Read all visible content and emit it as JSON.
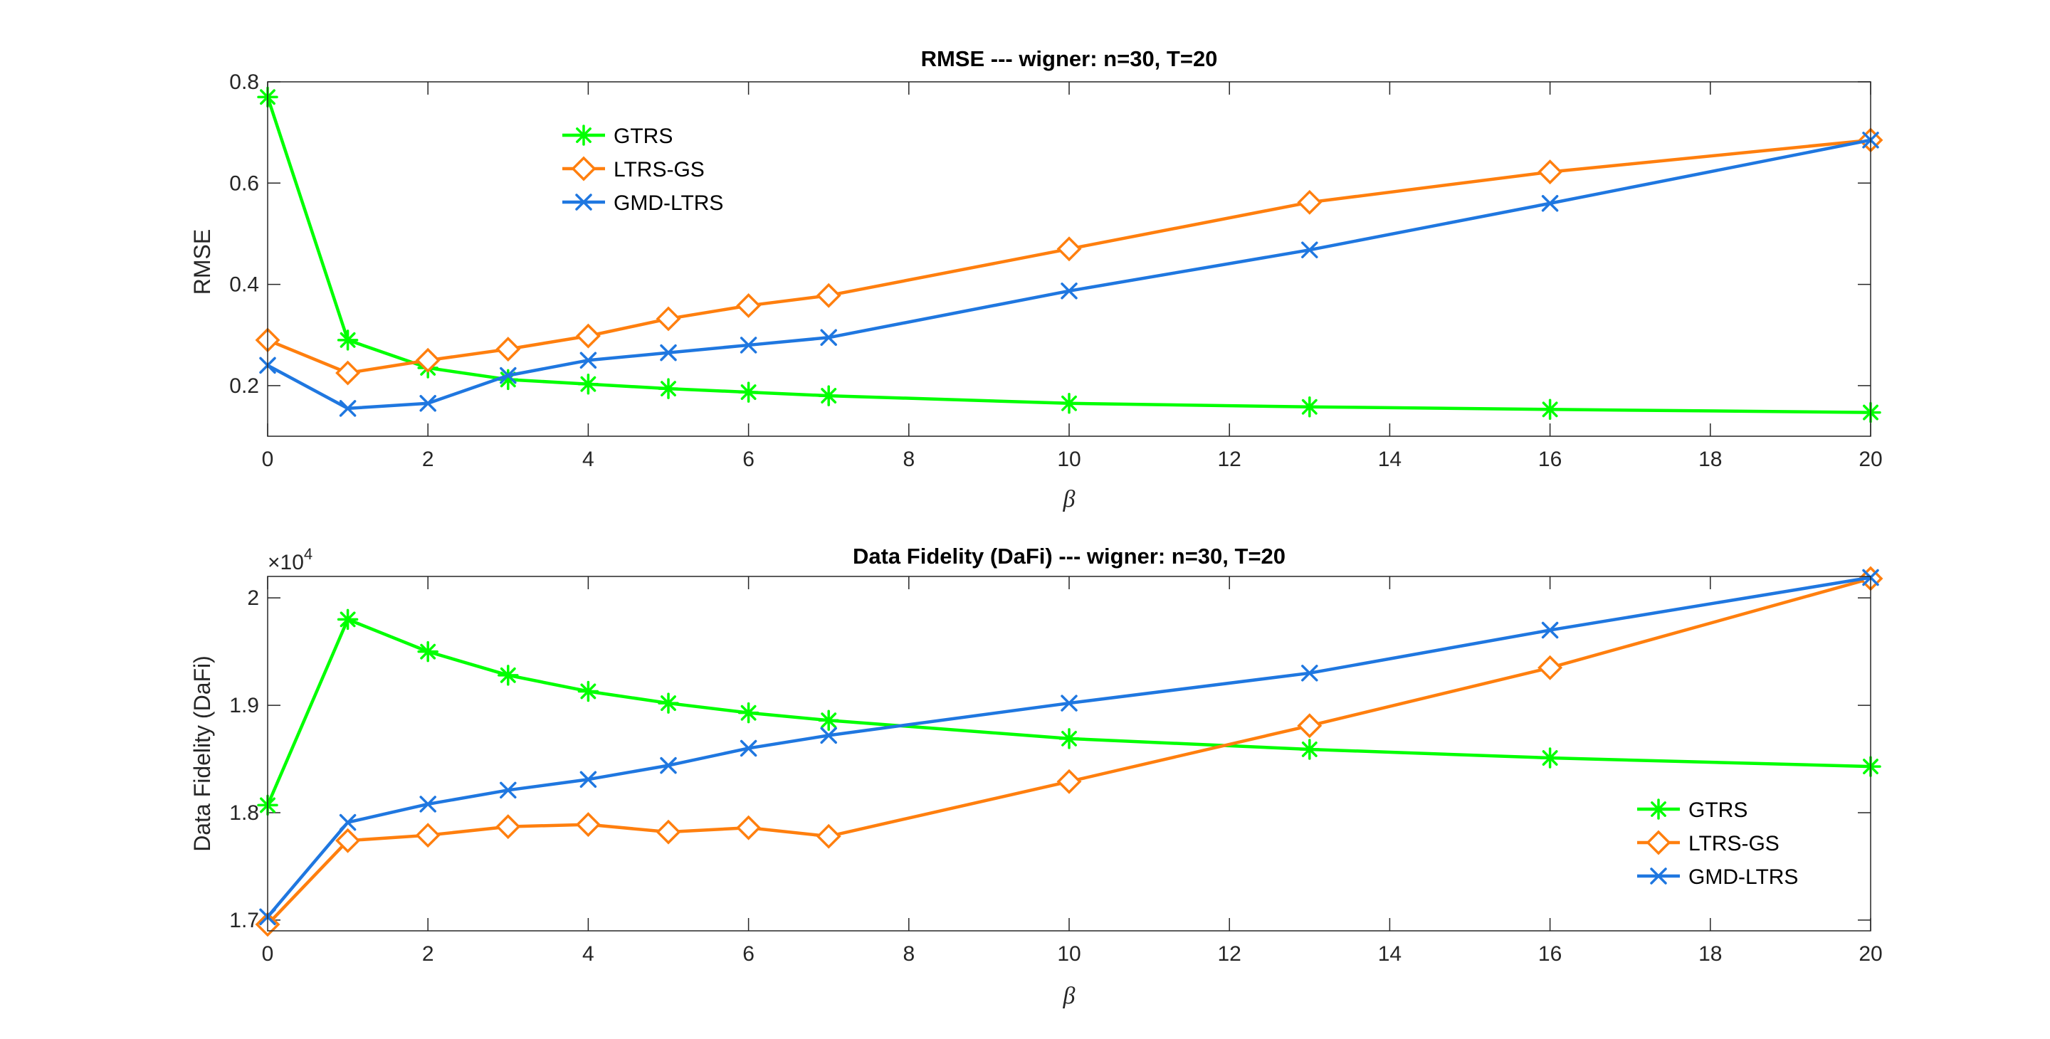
{
  "colors": {
    "GTRS": "#00ff00",
    "LTRS-GS": "#ff7f0e",
    "GMD-LTRS": "#1f77e0",
    "axis": "#262626"
  },
  "chart_data": [
    {
      "type": "line",
      "title": "RMSE --- wigner: n=30, T=20",
      "xlabel": "β",
      "ylabel": "RMSE",
      "xlim": [
        0,
        20
      ],
      "ylim": [
        0.1,
        0.8
      ],
      "xticks": [
        0,
        2,
        4,
        6,
        8,
        10,
        12,
        14,
        16,
        18,
        20
      ],
      "xtick_labels": [
        "0",
        "2",
        "4",
        "6",
        "8",
        "10",
        "12",
        "14",
        "16",
        "18",
        "20"
      ],
      "yticks": [
        0.2,
        0.4,
        0.6,
        0.8
      ],
      "ytick_labels": [
        "0.2",
        "0.4",
        "0.6",
        "0.8"
      ],
      "grid": false,
      "legend_position": "upper-left",
      "x": [
        0,
        1,
        2,
        3,
        4,
        5,
        6,
        7,
        10,
        13,
        16,
        20
      ],
      "series": [
        {
          "name": "GTRS",
          "marker": "star",
          "values": [
            0.77,
            0.29,
            0.235,
            0.212,
            0.203,
            0.194,
            0.187,
            0.18,
            0.165,
            0.158,
            0.153,
            0.147
          ]
        },
        {
          "name": "LTRS-GS",
          "marker": "diamond",
          "values": [
            0.29,
            0.225,
            0.25,
            0.272,
            0.298,
            0.332,
            0.358,
            0.378,
            0.47,
            0.562,
            0.622,
            0.685
          ]
        },
        {
          "name": "GMD-LTRS",
          "marker": "x",
          "values": [
            0.24,
            0.155,
            0.165,
            0.22,
            0.25,
            0.265,
            0.28,
            0.295,
            0.387,
            0.468,
            0.56,
            0.685
          ]
        }
      ]
    },
    {
      "type": "line",
      "title": "Data Fidelity (DaFi) --- wigner: n=30, T=20",
      "xlabel": "β",
      "ylabel": "Data Fidelity (DaFi)",
      "y_exponent_prefix": "×10",
      "y_exponent": "4",
      "xlim": [
        0,
        20
      ],
      "ylim": [
        1.69,
        2.02
      ],
      "xticks": [
        0,
        2,
        4,
        6,
        8,
        10,
        12,
        14,
        16,
        18,
        20
      ],
      "xtick_labels": [
        "0",
        "2",
        "4",
        "6",
        "8",
        "10",
        "12",
        "14",
        "16",
        "18",
        "20"
      ],
      "yticks": [
        1.7,
        1.8,
        1.9,
        2.0
      ],
      "ytick_labels": [
        "1.7",
        "1.8",
        "1.9",
        "2"
      ],
      "grid": false,
      "legend_position": "lower-right",
      "x": [
        0,
        1,
        2,
        3,
        4,
        5,
        6,
        7,
        10,
        13,
        16,
        20
      ],
      "series": [
        {
          "name": "GTRS",
          "marker": "star",
          "values": [
            1.807,
            1.98,
            1.95,
            1.928,
            1.913,
            1.902,
            1.893,
            1.886,
            1.869,
            1.859,
            1.851,
            1.843
          ]
        },
        {
          "name": "LTRS-GS",
          "marker": "diamond",
          "values": [
            1.696,
            1.774,
            1.779,
            1.787,
            1.789,
            1.782,
            1.786,
            1.778,
            1.829,
            1.881,
            1.935,
            2.018
          ]
        },
        {
          "name": "GMD-LTRS",
          "marker": "x",
          "values": [
            1.703,
            1.791,
            1.808,
            1.821,
            1.831,
            1.844,
            1.86,
            1.872,
            1.902,
            1.93,
            1.97,
            2.019
          ]
        }
      ]
    }
  ]
}
